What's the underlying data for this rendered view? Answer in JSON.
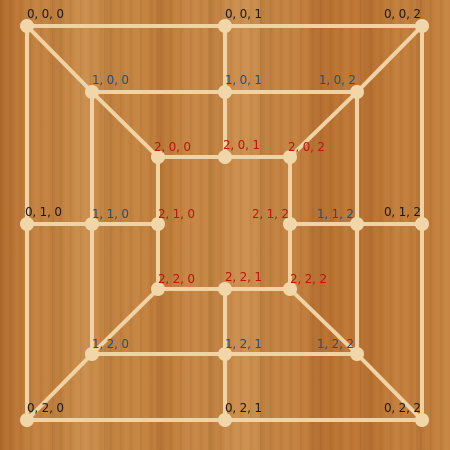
{
  "board": {
    "line_color": "#efd3a4",
    "point_color": "#f0d6a8",
    "rings": [
      {
        "ring": 0,
        "label_color": "#1a1a1a",
        "points": [
          {
            "id": "0,0,0",
            "label": "0, 0, 0"
          },
          {
            "id": "0,0,1",
            "label": "0, 0, 1"
          },
          {
            "id": "0,0,2",
            "label": "0, 0, 2"
          },
          {
            "id": "0,1,0",
            "label": "0, 1, 0"
          },
          {
            "id": "0,1,2",
            "label": "0, 1, 2"
          },
          {
            "id": "0,2,0",
            "label": "0, 2, 0"
          },
          {
            "id": "0,2,1",
            "label": "0, 2, 1"
          },
          {
            "id": "0,2,2",
            "label": "0, 2, 2"
          }
        ]
      },
      {
        "ring": 1,
        "label_color": "#1f4f86",
        "points": [
          {
            "id": "1,0,0",
            "label": "1, 0, 0"
          },
          {
            "id": "1,0,1",
            "label": "1, 0, 1"
          },
          {
            "id": "1,0,2",
            "label": "1, 0, 2"
          },
          {
            "id": "1,1,0",
            "label": "1, 1, 0"
          },
          {
            "id": "1,1,2",
            "label": "1, 1, 2"
          },
          {
            "id": "1,2,0",
            "label": "1, 2, 0"
          },
          {
            "id": "1,2,1",
            "label": "1, 2, 1"
          },
          {
            "id": "1,2,2",
            "label": "1, 2, 2"
          }
        ]
      },
      {
        "ring": 2,
        "label_color": "#c0140f",
        "points": [
          {
            "id": "2,0,0",
            "label": "2, 0, 0"
          },
          {
            "id": "2,0,1",
            "label": "2, 0, 1"
          },
          {
            "id": "2,0,2",
            "label": "2, 0, 2"
          },
          {
            "id": "2,1,0",
            "label": "2, 1, 0"
          },
          {
            "id": "2,1,2",
            "label": "2, 1, 2"
          },
          {
            "id": "2,2,0",
            "label": "2, 2, 0"
          },
          {
            "id": "2,2,1",
            "label": "2, 2, 1"
          },
          {
            "id": "2,2,2",
            "label": "2, 2, 2"
          }
        ]
      }
    ]
  }
}
